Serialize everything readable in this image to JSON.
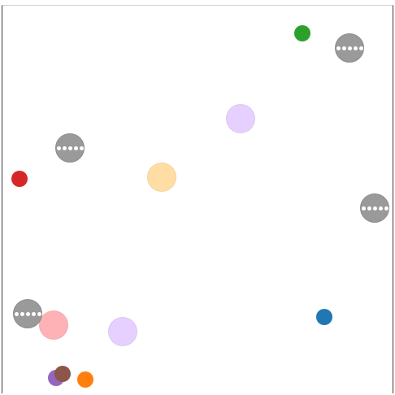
{
  "balls": [
    {
      "name": "green-ball",
      "color": "#2ca02c",
      "opacity": 1.0
    },
    {
      "name": "lavender-ball-upper",
      "color": "#d9b8ff",
      "opacity": 0.65
    },
    {
      "name": "peach-ball",
      "color": "#ffc76a",
      "opacity": 0.6
    },
    {
      "name": "red-ball",
      "color": "#d62728",
      "opacity": 1.0
    },
    {
      "name": "blue-ball",
      "color": "#1f77b4",
      "opacity": 1.0
    },
    {
      "name": "pink-ball",
      "color": "#ff8a8f",
      "opacity": 0.65
    },
    {
      "name": "lavender-ball-lower",
      "color": "#d9b8ff",
      "opacity": 0.65
    },
    {
      "name": "purple-ball",
      "color": "#9467bd",
      "opacity": 1.0
    },
    {
      "name": "brown-ball",
      "color": "#8c564b",
      "opacity": 1.0
    },
    {
      "name": "orange-ball",
      "color": "#ff7f0e",
      "opacity": 1.0
    }
  ],
  "cue_markers": [
    {
      "name": "gray-marker-top-right",
      "dots": 5
    },
    {
      "name": "gray-marker-left-upper",
      "dots": 5
    },
    {
      "name": "gray-marker-right-middle",
      "dots": 5
    },
    {
      "name": "gray-marker-left-lower",
      "dots": 5
    }
  ]
}
